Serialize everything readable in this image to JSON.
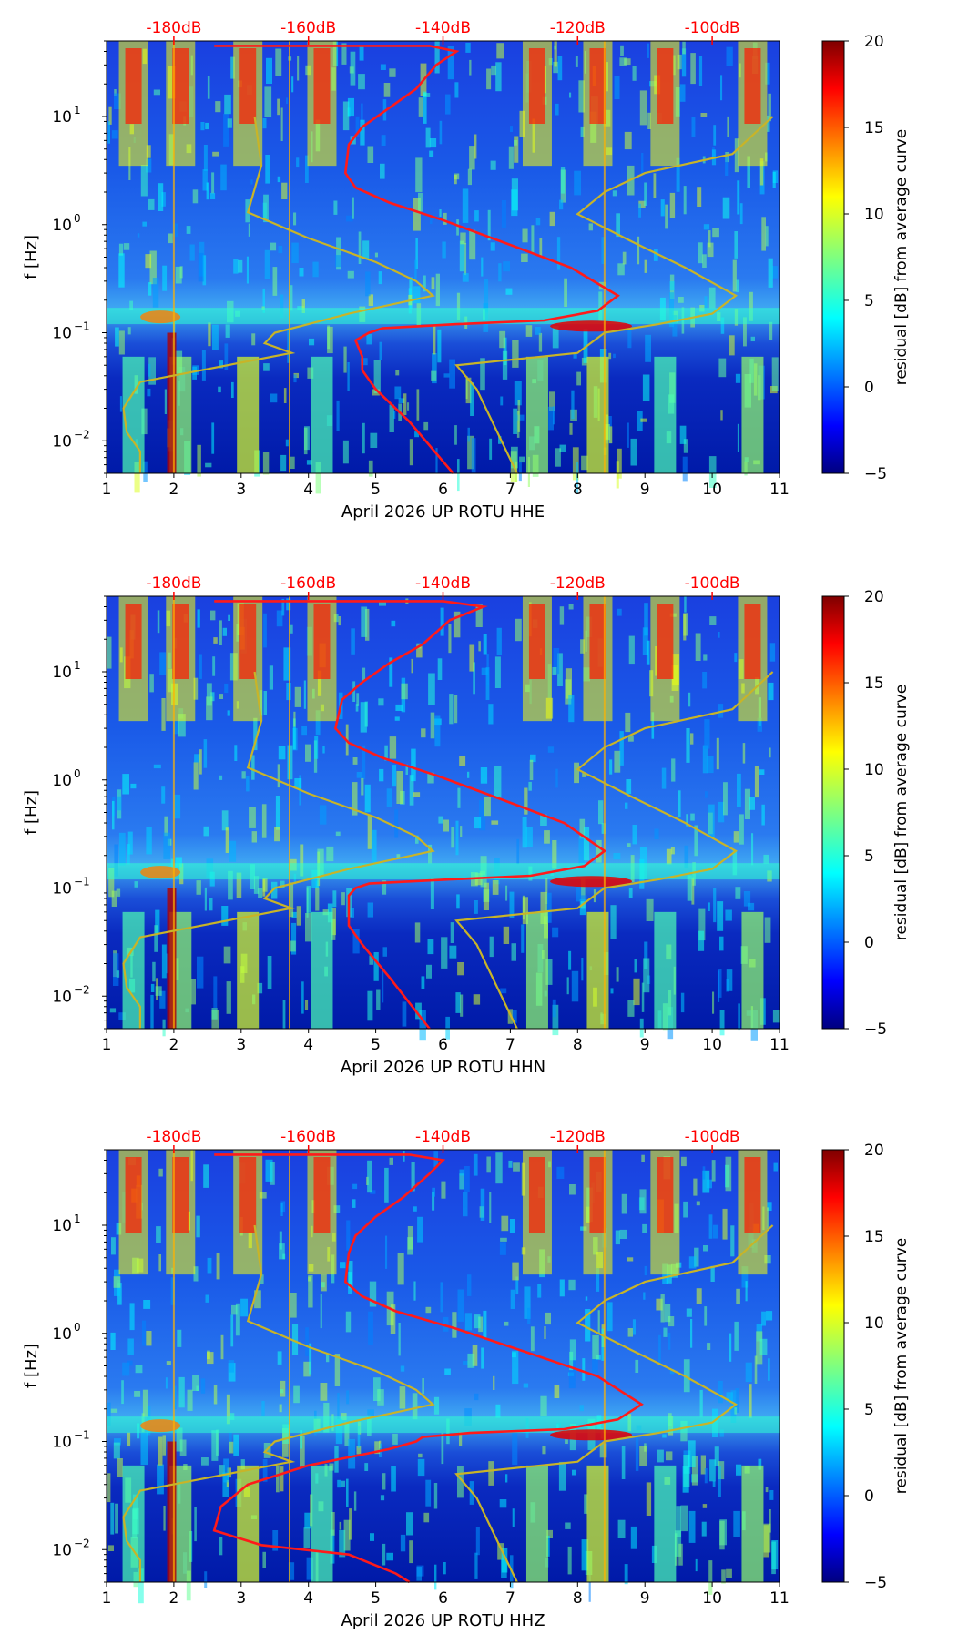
{
  "figure": {
    "colorbar_label": "residual [dB] from average curve",
    "ylabel": "f [Hz]"
  },
  "colors": {
    "red_curve": "#ff1a1a",
    "olive_curve": "#c8b428",
    "top_axis_text": "#ff0000"
  },
  "chart_data": [
    {
      "type": "heatmap",
      "title": "",
      "xlabel": "April 2026 UP ROTU  HHE",
      "ylabel": "f [Hz]",
      "x_ticks": [
        "1",
        "2",
        "3",
        "4",
        "5",
        "6",
        "7",
        "8",
        "9",
        "10",
        "11"
      ],
      "xlim": [
        1,
        11
      ],
      "y_scale": "log",
      "ylim": [
        0.005,
        50
      ],
      "y_ticks": [
        {
          "value": 10,
          "base": "10",
          "exp": "1"
        },
        {
          "value": 1,
          "base": "10",
          "exp": "0"
        },
        {
          "value": 0.1,
          "base": "10",
          "exp": "−1"
        },
        {
          "value": 0.01,
          "base": "10",
          "exp": "−2"
        }
      ],
      "top_ticks": [
        {
          "label": "-180dB",
          "x": 2
        },
        {
          "label": "-160dB",
          "x": 4
        },
        {
          "label": "-140dB",
          "x": 6
        },
        {
          "label": "-120dB",
          "x": 8
        },
        {
          "label": "-100dB",
          "x": 10
        }
      ],
      "colorbar": {
        "label": "residual [dB] from average curve",
        "min": -5,
        "max": 20,
        "ticks": [
          "20",
          "15",
          "10",
          "5",
          "0",
          "−5"
        ],
        "tick_values": [
          20,
          15,
          10,
          5,
          0,
          -5
        ]
      },
      "hot_columns": [
        1.4,
        2.1,
        3.1,
        4.2,
        7.4,
        8.3,
        9.3,
        10.6
      ],
      "series": [
        {
          "color": "#ff1a1a",
          "points": [
            [
              2.6,
              45
            ],
            [
              5.8,
              45
            ],
            [
              6.2,
              40
            ],
            [
              5.9,
              30
            ],
            [
              5.6,
              18
            ],
            [
              5.2,
              12
            ],
            [
              4.8,
              8
            ],
            [
              4.6,
              5.5
            ],
            [
              4.55,
              3
            ],
            [
              4.7,
              2.2
            ],
            [
              5.2,
              1.6
            ],
            [
              6.0,
              1.1
            ],
            [
              7.0,
              0.65
            ],
            [
              7.9,
              0.4
            ],
            [
              8.6,
              0.22
            ],
            [
              8.3,
              0.16
            ],
            [
              7.5,
              0.13
            ],
            [
              6.2,
              0.12
            ],
            [
              5.1,
              0.11
            ],
            [
              4.9,
              0.1
            ],
            [
              4.7,
              0.085
            ],
            [
              4.8,
              0.06
            ],
            [
              4.8,
              0.045
            ],
            [
              5.0,
              0.03
            ],
            [
              5.5,
              0.015
            ],
            [
              6.15,
              0.005
            ]
          ]
        },
        {
          "color": "#c8b428",
          "points": [
            [
              3.2,
              10
            ],
            [
              3.3,
              3.5
            ],
            [
              3.1,
              1.3
            ],
            [
              4.0,
              0.75
            ],
            [
              5.0,
              0.45
            ],
            [
              5.6,
              0.3
            ],
            [
              5.85,
              0.22
            ],
            [
              4.6,
              0.15
            ],
            [
              3.5,
              0.1
            ],
            [
              3.35,
              0.08
            ],
            [
              3.75,
              0.065
            ],
            [
              1.5,
              0.035
            ],
            [
              1.25,
              0.02
            ],
            [
              1.3,
              0.012
            ],
            [
              1.5,
              0.008
            ],
            [
              1.5,
              0.005
            ]
          ]
        },
        {
          "color": "#c8b428",
          "points": [
            [
              10.9,
              10
            ],
            [
              10.3,
              4.5
            ],
            [
              9.0,
              3.0
            ],
            [
              8.4,
              2.0
            ],
            [
              8.0,
              1.25
            ],
            [
              8.8,
              0.7
            ],
            [
              9.6,
              0.4
            ],
            [
              10.35,
              0.22
            ],
            [
              10.0,
              0.15
            ],
            [
              9.2,
              0.12
            ],
            [
              8.4,
              0.1
            ],
            [
              8.0,
              0.065
            ],
            [
              6.2,
              0.05
            ],
            [
              6.5,
              0.03
            ],
            [
              7.1,
              0.005
            ]
          ]
        }
      ]
    },
    {
      "type": "heatmap",
      "title": "",
      "xlabel": "April 2026 UP ROTU  HHN",
      "ylabel": "f [Hz]",
      "x_ticks": [
        "1",
        "2",
        "3",
        "4",
        "5",
        "6",
        "7",
        "8",
        "9",
        "10",
        "11"
      ],
      "xlim": [
        1,
        11
      ],
      "y_scale": "log",
      "ylim": [
        0.005,
        50
      ],
      "y_ticks": [
        {
          "value": 10,
          "base": "10",
          "exp": "1"
        },
        {
          "value": 1,
          "base": "10",
          "exp": "0"
        },
        {
          "value": 0.1,
          "base": "10",
          "exp": "−1"
        },
        {
          "value": 0.01,
          "base": "10",
          "exp": "−2"
        }
      ],
      "top_ticks": [
        {
          "label": "-180dB",
          "x": 2
        },
        {
          "label": "-160dB",
          "x": 4
        },
        {
          "label": "-140dB",
          "x": 6
        },
        {
          "label": "-120dB",
          "x": 8
        },
        {
          "label": "-100dB",
          "x": 10
        }
      ],
      "colorbar": {
        "label": "residual [dB] from average curve",
        "min": -5,
        "max": 20,
        "ticks": [
          "20",
          "15",
          "10",
          "5",
          "0",
          "−5"
        ],
        "tick_values": [
          20,
          15,
          10,
          5,
          0,
          -5
        ]
      },
      "hot_columns": [
        1.4,
        2.1,
        3.1,
        4.2,
        7.4,
        8.3,
        9.3,
        10.6
      ],
      "series": [
        {
          "color": "#ff1a1a",
          "points": [
            [
              2.6,
              45
            ],
            [
              6.0,
              45
            ],
            [
              6.6,
              40
            ],
            [
              6.1,
              30
            ],
            [
              5.7,
              18
            ],
            [
              5.2,
              12
            ],
            [
              4.8,
              8
            ],
            [
              4.5,
              5.5
            ],
            [
              4.4,
              3
            ],
            [
              4.6,
              2.2
            ],
            [
              5.1,
              1.6
            ],
            [
              5.9,
              1.1
            ],
            [
              6.9,
              0.65
            ],
            [
              7.8,
              0.4
            ],
            [
              8.4,
              0.22
            ],
            [
              8.1,
              0.16
            ],
            [
              7.3,
              0.13
            ],
            [
              6.1,
              0.12
            ],
            [
              4.9,
              0.11
            ],
            [
              4.7,
              0.1
            ],
            [
              4.6,
              0.085
            ],
            [
              4.6,
              0.06
            ],
            [
              4.6,
              0.045
            ],
            [
              4.8,
              0.03
            ],
            [
              5.2,
              0.015
            ],
            [
              5.8,
              0.005
            ]
          ]
        },
        {
          "color": "#c8b428",
          "points": [
            [
              3.2,
              10
            ],
            [
              3.3,
              3.5
            ],
            [
              3.1,
              1.3
            ],
            [
              4.0,
              0.75
            ],
            [
              5.0,
              0.45
            ],
            [
              5.6,
              0.3
            ],
            [
              5.85,
              0.22
            ],
            [
              4.6,
              0.15
            ],
            [
              3.5,
              0.1
            ],
            [
              3.35,
              0.08
            ],
            [
              3.75,
              0.065
            ],
            [
              1.5,
              0.035
            ],
            [
              1.25,
              0.02
            ],
            [
              1.3,
              0.012
            ],
            [
              1.5,
              0.008
            ],
            [
              1.5,
              0.005
            ]
          ]
        },
        {
          "color": "#c8b428",
          "points": [
            [
              10.9,
              10
            ],
            [
              10.3,
              4.5
            ],
            [
              9.0,
              3.0
            ],
            [
              8.4,
              2.0
            ],
            [
              8.0,
              1.25
            ],
            [
              8.8,
              0.7
            ],
            [
              9.6,
              0.4
            ],
            [
              10.35,
              0.22
            ],
            [
              10.0,
              0.15
            ],
            [
              9.2,
              0.12
            ],
            [
              8.4,
              0.1
            ],
            [
              8.0,
              0.065
            ],
            [
              6.2,
              0.05
            ],
            [
              6.5,
              0.03
            ],
            [
              7.1,
              0.005
            ]
          ]
        }
      ]
    },
    {
      "type": "heatmap",
      "title": "",
      "xlabel": "April 2026 UP ROTU  HHZ",
      "ylabel": "f [Hz]",
      "x_ticks": [
        "1",
        "2",
        "3",
        "4",
        "5",
        "6",
        "7",
        "8",
        "9",
        "10",
        "11"
      ],
      "xlim": [
        1,
        11
      ],
      "y_scale": "log",
      "ylim": [
        0.005,
        50
      ],
      "y_ticks": [
        {
          "value": 10,
          "base": "10",
          "exp": "1"
        },
        {
          "value": 1,
          "base": "10",
          "exp": "0"
        },
        {
          "value": 0.1,
          "base": "10",
          "exp": "−1"
        },
        {
          "value": 0.01,
          "base": "10",
          "exp": "−2"
        }
      ],
      "top_ticks": [
        {
          "label": "-180dB",
          "x": 2
        },
        {
          "label": "-160dB",
          "x": 4
        },
        {
          "label": "-140dB",
          "x": 6
        },
        {
          "label": "-120dB",
          "x": 8
        },
        {
          "label": "-100dB",
          "x": 10
        }
      ],
      "colorbar": {
        "label": "residual [dB] from average curve",
        "min": -5,
        "max": 20,
        "ticks": [
          "20",
          "15",
          "10",
          "5",
          "0",
          "−5"
        ],
        "tick_values": [
          20,
          15,
          10,
          5,
          0,
          -5
        ]
      },
      "hot_columns": [
        1.4,
        2.1,
        3.1,
        4.2,
        7.4,
        8.3,
        9.3,
        10.6
      ],
      "series": [
        {
          "color": "#ff1a1a",
          "points": [
            [
              2.6,
              45
            ],
            [
              5.5,
              45
            ],
            [
              6.0,
              40
            ],
            [
              5.8,
              30
            ],
            [
              5.4,
              18
            ],
            [
              5.0,
              12
            ],
            [
              4.7,
              8
            ],
            [
              4.6,
              5.5
            ],
            [
              4.55,
              3
            ],
            [
              4.8,
              2.2
            ],
            [
              5.3,
              1.6
            ],
            [
              6.2,
              1.1
            ],
            [
              7.3,
              0.65
            ],
            [
              8.3,
              0.4
            ],
            [
              8.95,
              0.22
            ],
            [
              8.6,
              0.16
            ],
            [
              7.8,
              0.13
            ],
            [
              6.4,
              0.12
            ],
            [
              5.7,
              0.11
            ],
            [
              5.6,
              0.1
            ],
            [
              5.2,
              0.085
            ],
            [
              4.0,
              0.06
            ],
            [
              3.1,
              0.04
            ],
            [
              2.7,
              0.025
            ],
            [
              2.6,
              0.015
            ],
            [
              3.3,
              0.011
            ],
            [
              4.6,
              0.009
            ],
            [
              5.3,
              0.006
            ],
            [
              5.5,
              0.005
            ]
          ]
        },
        {
          "color": "#c8b428",
          "points": [
            [
              3.2,
              10
            ],
            [
              3.3,
              3.5
            ],
            [
              3.1,
              1.3
            ],
            [
              4.0,
              0.75
            ],
            [
              5.0,
              0.45
            ],
            [
              5.6,
              0.3
            ],
            [
              5.85,
              0.22
            ],
            [
              4.6,
              0.15
            ],
            [
              3.5,
              0.1
            ],
            [
              3.35,
              0.08
            ],
            [
              3.75,
              0.065
            ],
            [
              1.5,
              0.035
            ],
            [
              1.25,
              0.02
            ],
            [
              1.3,
              0.012
            ],
            [
              1.5,
              0.008
            ],
            [
              1.5,
              0.005
            ]
          ]
        },
        {
          "color": "#c8b428",
          "points": [
            [
              10.9,
              10
            ],
            [
              10.3,
              4.5
            ],
            [
              9.0,
              3.0
            ],
            [
              8.4,
              2.0
            ],
            [
              8.0,
              1.25
            ],
            [
              8.8,
              0.7
            ],
            [
              9.6,
              0.4
            ],
            [
              10.35,
              0.22
            ],
            [
              10.0,
              0.15
            ],
            [
              9.2,
              0.12
            ],
            [
              8.4,
              0.1
            ],
            [
              8.0,
              0.065
            ],
            [
              6.2,
              0.05
            ],
            [
              6.5,
              0.03
            ],
            [
              7.1,
              0.005
            ]
          ]
        }
      ]
    }
  ]
}
